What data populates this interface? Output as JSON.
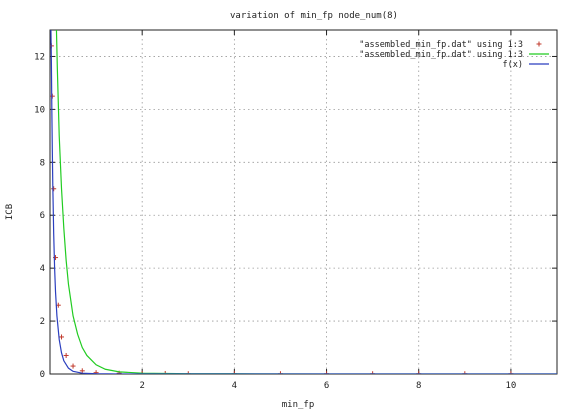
{
  "chart_data": {
    "type": "line",
    "title": "variation of min_fp node_num(8)",
    "xlabel": "min_fp",
    "ylabel": "ICB",
    "xlim": [
      0,
      11
    ],
    "ylim": [
      0,
      13
    ],
    "grid": true,
    "legend_placement": "top-right",
    "x_ticks": [
      2,
      4,
      6,
      8,
      10
    ],
    "x_tick_labels": [
      "2",
      "4",
      "6",
      "8",
      "10"
    ],
    "y_ticks": [
      0,
      2,
      4,
      6,
      8,
      10,
      12
    ],
    "y_tick_labels": [
      "0",
      "2",
      "4",
      "6",
      "8",
      "10",
      "12"
    ],
    "series": [
      {
        "name": "\"assembled_min_fp.dat\" using 1:3",
        "style": "points",
        "color": "#c0392b",
        "x": [
          0.03,
          0.05,
          0.08,
          0.12,
          0.18,
          0.25,
          0.35,
          0.5,
          0.7,
          1.0,
          1.5,
          2.0,
          2.5,
          3.0,
          4.0,
          5.0,
          6.0,
          7.0,
          8.0,
          9.0,
          10.0
        ],
        "y": [
          12.4,
          10.5,
          7.0,
          4.4,
          2.6,
          1.4,
          0.7,
          0.3,
          0.12,
          0.05,
          0.03,
          0.02,
          0.02,
          0.01,
          0.01,
          0.01,
          0.01,
          0.01,
          0.01,
          0.01,
          0.01
        ]
      },
      {
        "name": "\"assembled_min_fp.dat\" using 1:3",
        "style": "line",
        "color": "#22cc22",
        "x": [
          0.14,
          0.16,
          0.2,
          0.25,
          0.3,
          0.35,
          0.4,
          0.5,
          0.6,
          0.7,
          0.8,
          1.0,
          1.2,
          1.5,
          2.0,
          3.0,
          4.0,
          6.0,
          8.0,
          10.0,
          11.0
        ],
        "y": [
          13.0,
          11.5,
          9.0,
          7.0,
          5.5,
          4.3,
          3.4,
          2.2,
          1.5,
          1.0,
          0.7,
          0.35,
          0.18,
          0.08,
          0.03,
          0.01,
          0.01,
          0.0,
          0.0,
          0.0,
          0.0
        ]
      },
      {
        "name": "f(x)",
        "style": "line",
        "color": "#2b3fbf",
        "x": [
          0.02,
          0.03,
          0.04,
          0.05,
          0.06,
          0.08,
          0.1,
          0.12,
          0.15,
          0.2,
          0.25,
          0.3,
          0.4,
          0.5,
          0.7,
          1.0,
          1.5,
          2.0,
          4.0,
          6.0,
          8.0,
          10.0,
          11.0
        ],
        "y": [
          13.0,
          11.8,
          10.0,
          8.5,
          7.2,
          5.3,
          4.0,
          3.1,
          2.2,
          1.3,
          0.8,
          0.5,
          0.22,
          0.1,
          0.03,
          0.01,
          0.0,
          0.0,
          0.0,
          0.0,
          0.0,
          0.0,
          0.0
        ]
      }
    ]
  }
}
